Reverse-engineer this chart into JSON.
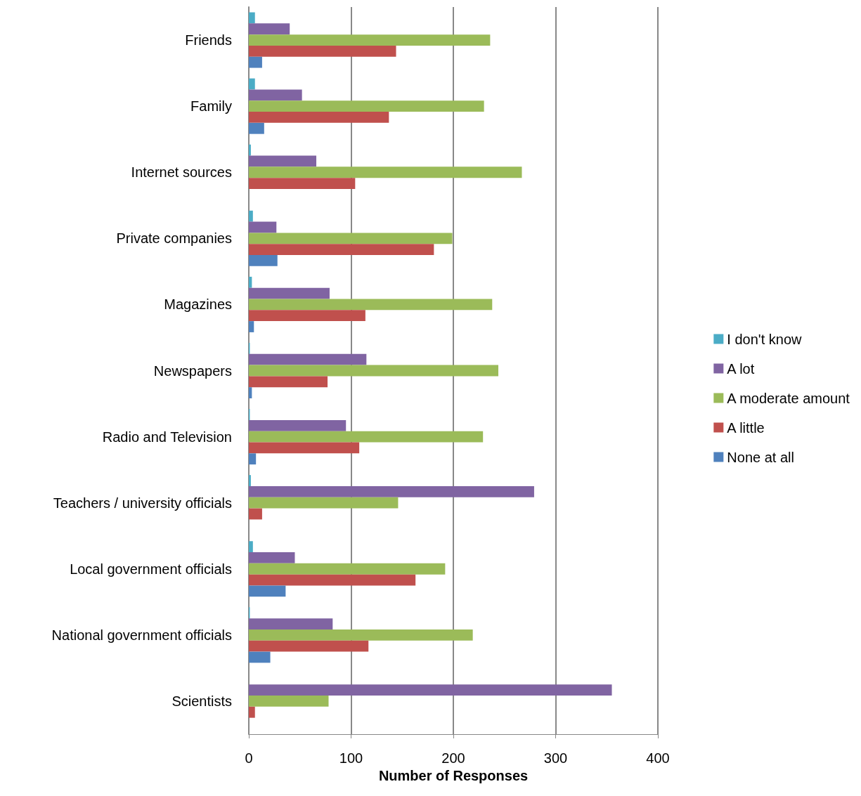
{
  "chart_data": {
    "type": "bar",
    "orientation": "horizontal",
    "xlabel": "Number of Responses",
    "categories": [
      "Friends",
      "Family",
      "Internet sources",
      "Private companies",
      "Magazines",
      "Newspapers",
      "Radio and Television",
      "Teachers / university officials",
      "Local government officials",
      "National government officials",
      "Scientists"
    ],
    "series": [
      {
        "name": "I don't know",
        "color": "#4bacc6",
        "values": [
          6,
          6,
          2,
          4,
          3,
          1,
          1,
          2,
          4,
          1,
          0
        ]
      },
      {
        "name": "A lot",
        "color": "#8064a2",
        "values": [
          40,
          52,
          66,
          27,
          79,
          115,
          95,
          279,
          45,
          82,
          355
        ]
      },
      {
        "name": "A moderate amount",
        "color": "#9bbb59",
        "values": [
          236,
          230,
          267,
          199,
          238,
          244,
          229,
          146,
          192,
          219,
          78
        ]
      },
      {
        "name": "A little",
        "color": "#c0504d",
        "values": [
          144,
          137,
          104,
          181,
          114,
          77,
          108,
          13,
          163,
          117,
          6
        ]
      },
      {
        "name": "None at all",
        "color": "#4f81bd",
        "values": [
          13,
          15,
          0,
          28,
          5,
          3,
          7,
          0,
          36,
          21,
          null
        ]
      }
    ],
    "xlim": [
      0,
      400
    ],
    "xticks": [
      0,
      100,
      200,
      300,
      400
    ],
    "grid": "x",
    "legend": "right"
  }
}
